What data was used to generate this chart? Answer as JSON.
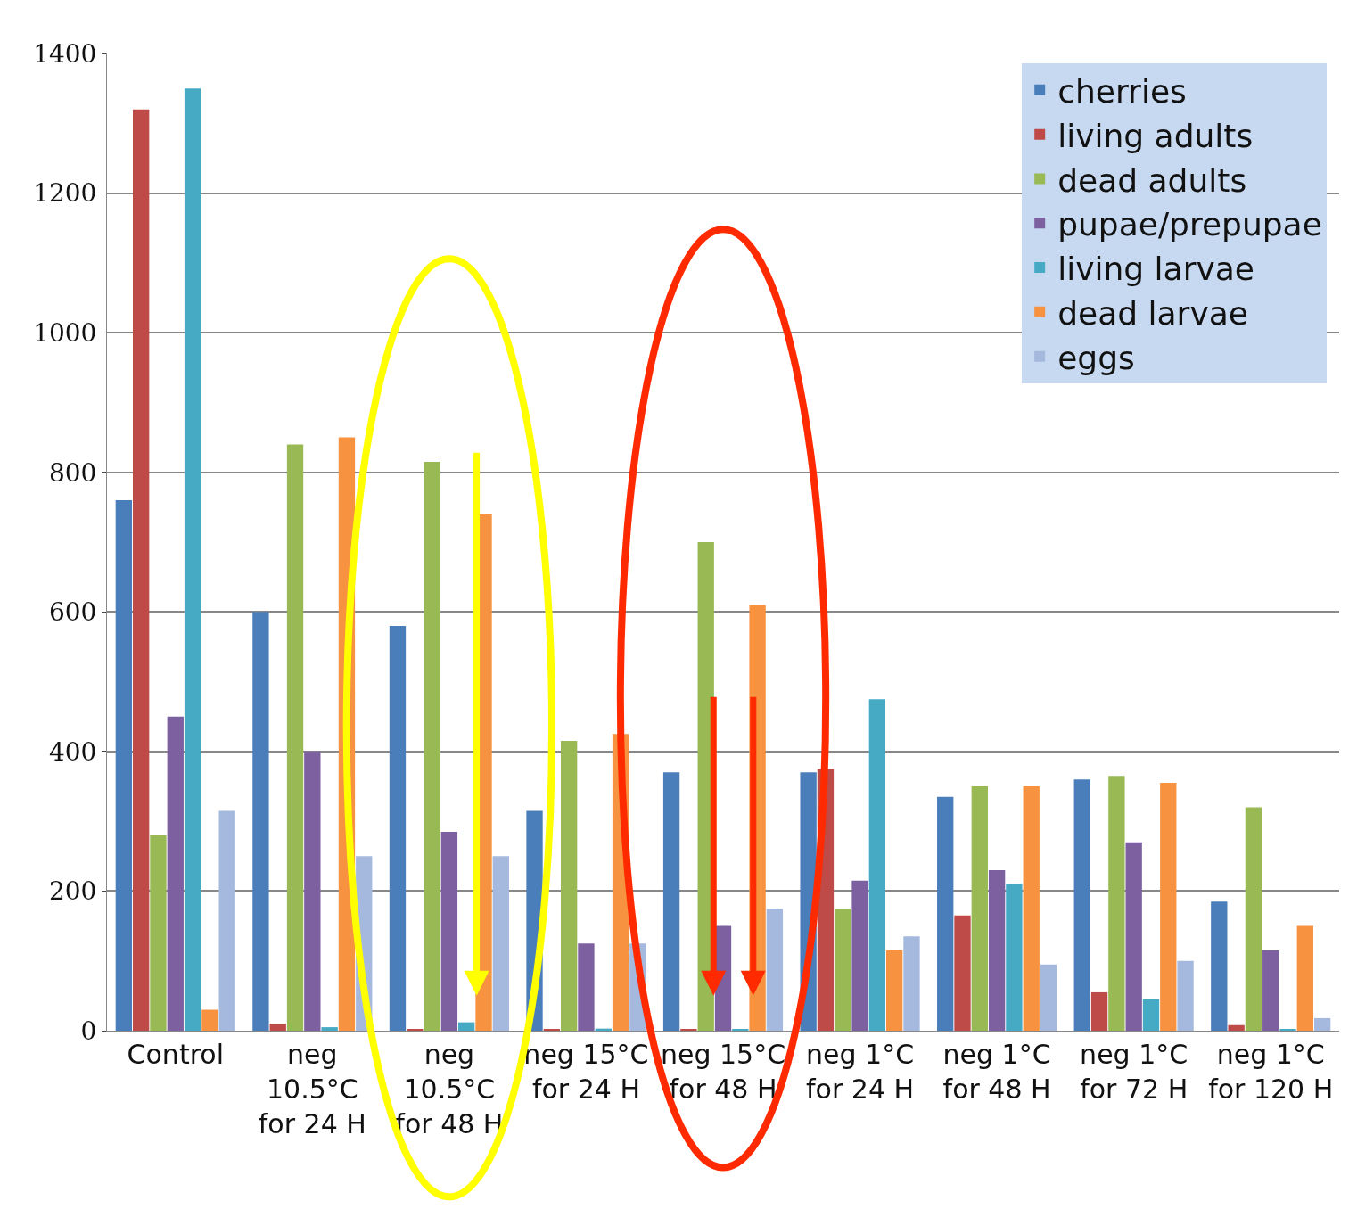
{
  "chart_data": {
    "type": "bar",
    "categories": [
      "Control",
      "neg\n10.5°C\nfor 24 H",
      "neg\n10.5°C\nfor 48 H",
      "neg 15°C\nfor 24 H",
      "neg 15°C\nfor 48 H",
      "neg 1°C\nfor 24 H",
      "neg 1°C\nfor 48 H",
      "neg 1°C\nfor 72 H",
      "neg 1°C\nfor 120 H"
    ],
    "series": [
      {
        "name": "cherries",
        "color": "#4a7ebb",
        "values": [
          760,
          600,
          580,
          315,
          370,
          370,
          335,
          360,
          185
        ]
      },
      {
        "name": "living adults",
        "color": "#be4b48",
        "values": [
          1320,
          10,
          2,
          2,
          2,
          375,
          165,
          55,
          8
        ]
      },
      {
        "name": "dead adults",
        "color": "#98b954",
        "values": [
          280,
          840,
          815,
          415,
          700,
          175,
          350,
          365,
          320
        ]
      },
      {
        "name": "pupae/prepupae",
        "color": "#7d60a0",
        "values": [
          450,
          400,
          285,
          125,
          150,
          215,
          230,
          270,
          115
        ]
      },
      {
        "name": "living larvae",
        "color": "#46aac5",
        "values": [
          1350,
          5,
          12,
          3,
          2,
          475,
          210,
          45,
          2
        ]
      },
      {
        "name": "dead larvae",
        "color": "#f69240",
        "values": [
          30,
          850,
          740,
          425,
          610,
          115,
          350,
          355,
          150
        ]
      },
      {
        "name": "eggs",
        "color": "#a5b9df",
        "values": [
          315,
          250,
          250,
          125,
          175,
          135,
          95,
          100,
          18
        ]
      }
    ],
    "ylim": [
      0,
      1400
    ],
    "yticks": [
      0,
      200,
      400,
      600,
      800,
      1000,
      1200,
      1400
    ],
    "grid": "y",
    "legend": "top right"
  }
}
